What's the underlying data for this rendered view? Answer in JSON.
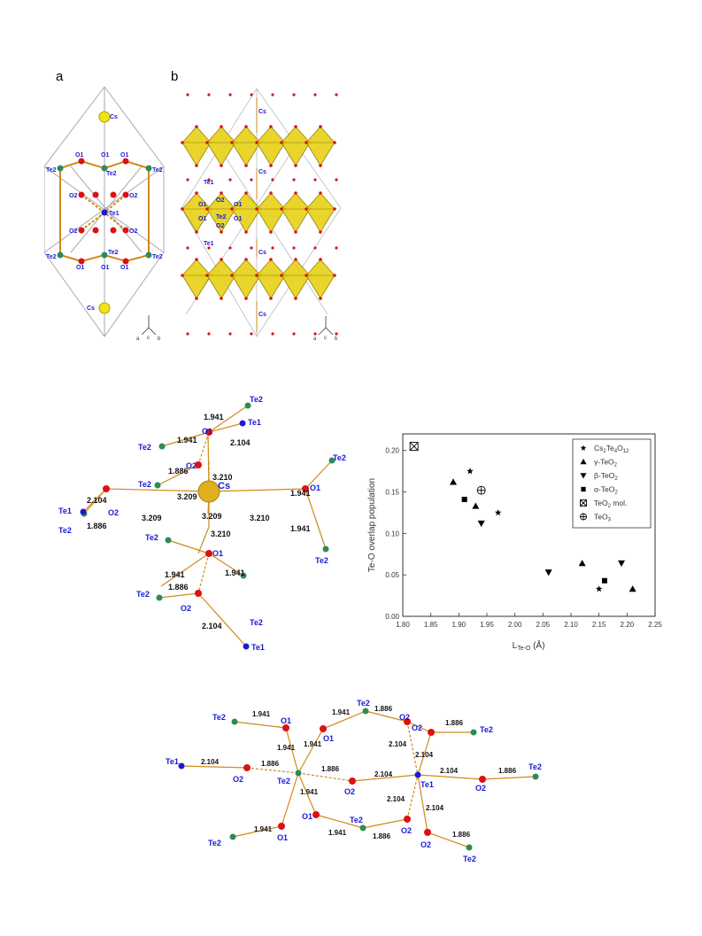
{
  "panel_labels": {
    "a": "a",
    "b": "b"
  },
  "panel_a": {
    "atoms": [
      "Cs",
      "O1",
      "O1",
      "O1",
      "O1",
      "Te2",
      "Te2",
      "Te2",
      "O2",
      "O2",
      "O2",
      "O2",
      "Te1",
      "O2",
      "O2",
      "O2",
      "O2",
      "Te2",
      "Te2",
      "Te2",
      "O1",
      "O1",
      "O1",
      "O1",
      "Cs"
    ],
    "axes": {
      "a": "a",
      "c": "c",
      "b": "b"
    }
  },
  "panel_b": {
    "labels": [
      "Cs",
      "Cs",
      "Te1",
      "O2",
      "O1",
      "O1",
      "O1",
      "Te2",
      "O1",
      "O2",
      "Te1",
      "Cs",
      "Cs"
    ],
    "axes": {
      "a": "a",
      "c": "c",
      "b": "b"
    }
  },
  "cs_env": {
    "center": "Cs",
    "labels": {
      "te2_a": "Te2",
      "te1_a": "Te1",
      "o1_a": "O1",
      "te2_b": "Te2",
      "o2_a": "O2",
      "te2_c": "Te2",
      "te1_b": "Te1",
      "o2_b": "O2",
      "te2_d": "Te2",
      "te2_e": "Te2",
      "o1_b": "O1",
      "te2_f": "Te2",
      "o2_c": "O2",
      "te2_g": "Te2",
      "te1_c": "Te1",
      "te2_h": "Te2",
      "o1_c": "O1",
      "te2_i": "Te2"
    },
    "distances": {
      "d1": "1.941",
      "d2": "1.941",
      "d3": "2.104",
      "d4": "1.886",
      "d5": "3.209",
      "d6": "3.210",
      "d7": "2.104",
      "d8": "1.886",
      "d9": "3.209",
      "d10": "3.210",
      "d11": "3.209",
      "d12": "3.210",
      "d13": "1.941",
      "d14": "1.941",
      "d15": "1.941",
      "d16": "1.886",
      "d17": "1.941",
      "d18": "2.104",
      "d19": "1.941",
      "d20": "1.941"
    }
  },
  "te_network": {
    "labels": {
      "te2_1": "Te2",
      "o1_1": "O1",
      "o1_2": "O1",
      "te2_2": "Te2",
      "o2_1": "O2",
      "o2_2": "O2",
      "te2_3": "Te2",
      "te1_1": "Te1",
      "o2_3": "O2",
      "te2_c": "Te2",
      "o2_4": "O2",
      "te1_c": "Te1",
      "o2_5": "O2",
      "te2_4": "Te2",
      "te2_5": "Te2",
      "o1_3": "O1",
      "o1_4": "O1",
      "te2_6": "Te2",
      "o2_6": "O2",
      "o2_7": "O2",
      "te2_7": "Te2"
    },
    "distances": {
      "n1": "1.941",
      "n2": "1.941",
      "n3": "1.886",
      "n4": "1.886",
      "n5": "1.941",
      "n6": "1.941",
      "n7": "2.104",
      "n8": "2.104",
      "n9": "2.104",
      "n10": "1.886",
      "n11": "1.886",
      "n12": "2.104",
      "n13": "2.104",
      "n14": "1.886",
      "n15": "1.941",
      "n16": "2.104",
      "n17": "2.104",
      "n18": "1.941",
      "n19": "1.941",
      "n20": "1.886",
      "n21": "1.886"
    }
  },
  "chart_data": {
    "type": "scatter",
    "xlabel": "L Te-O (Å)",
    "xlabel_main": "L",
    "xlabel_sub": "Te-O",
    "xlabel_unit": "(Å)",
    "ylabel": "Te-O overlap population",
    "xlim": [
      1.8,
      2.25
    ],
    "ylim": [
      0.0,
      0.22
    ],
    "xticks": [
      "1.80",
      "1.85",
      "1.90",
      "1.95",
      "2.00",
      "2.05",
      "2.10",
      "2.15",
      "2.20",
      "2.25"
    ],
    "yticks": [
      "0.00",
      "0.05",
      "0.10",
      "0.15",
      "0.20"
    ],
    "legend_position": "top-right",
    "series": [
      {
        "name": "Cs2Te4O12",
        "label_main": "Cs",
        "label_sub1": "2",
        "label_mid": "Te",
        "label_sub2": "4",
        "label_end": "O",
        "label_sub3": "12",
        "marker": "star",
        "points": [
          [
            1.92,
            0.175
          ],
          [
            1.97,
            0.125
          ],
          [
            2.15,
            0.033
          ]
        ]
      },
      {
        "name": "γ-TeO2",
        "label_main": "γ-TeO",
        "label_sub1": "2",
        "marker": "triangle-up",
        "points": [
          [
            1.89,
            0.162
          ],
          [
            1.93,
            0.133
          ],
          [
            2.12,
            0.064
          ],
          [
            2.21,
            0.033
          ]
        ]
      },
      {
        "name": "β-TeO2",
        "label_main": "β-TeO",
        "label_sub1": "2",
        "marker": "triangle-down",
        "points": [
          [
            1.94,
            0.112
          ],
          [
            2.06,
            0.053
          ],
          [
            2.19,
            0.064
          ]
        ]
      },
      {
        "name": "α-TeO2",
        "label_main": "α-TeO",
        "label_sub1": "2",
        "marker": "square",
        "points": [
          [
            1.91,
            0.141
          ],
          [
            2.16,
            0.043
          ]
        ]
      },
      {
        "name": "TeO2 mol.",
        "label_main": "TeO",
        "label_sub1": "2",
        "label_end": " mol.",
        "marker": "boxed-x",
        "points": [
          [
            1.82,
            0.205
          ]
        ]
      },
      {
        "name": "TeO3",
        "label_main": "TeO",
        "label_sub1": "3",
        "marker": "circle-plus",
        "points": [
          [
            1.94,
            0.152
          ]
        ]
      }
    ]
  }
}
